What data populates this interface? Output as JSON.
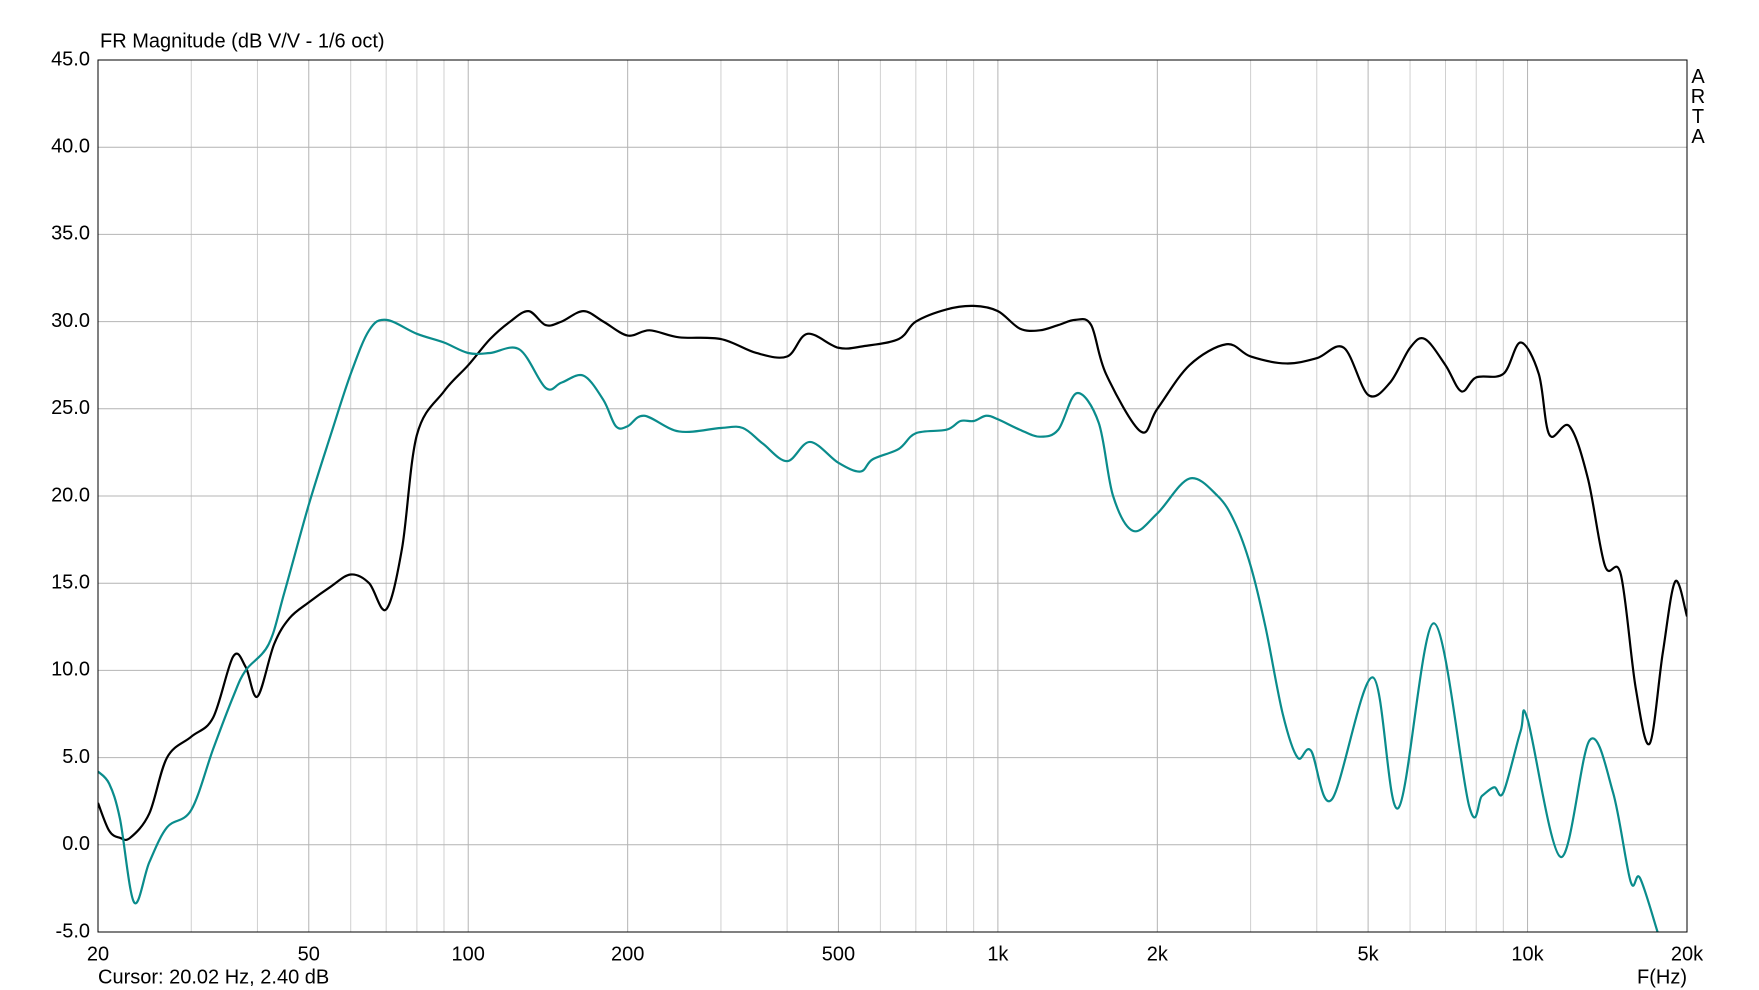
{
  "chart_data": {
    "type": "line",
    "title": "FR Magnitude (dB V/V - 1/6 oct)",
    "xlabel": "F(Hz)",
    "watermark": "ARTA",
    "status": "Cursor: 20.02 Hz, 2.40 dB",
    "xscale": "log",
    "grid": true,
    "xlim": [
      20,
      20000
    ],
    "ylim": [
      -5,
      45
    ],
    "xticks": [
      20,
      50,
      100,
      200,
      500,
      {
        "value": 1000,
        "label": "1k"
      },
      {
        "value": 2000,
        "label": "2k"
      },
      {
        "value": 5000,
        "label": "5k"
      },
      {
        "value": 10000,
        "label": "10k"
      },
      {
        "value": 20000,
        "label": "20k"
      }
    ],
    "xminorticks": [
      30,
      40,
      60,
      70,
      80,
      90,
      300,
      400,
      600,
      700,
      800,
      900,
      3000,
      4000,
      6000,
      7000,
      8000,
      9000
    ],
    "yticks": [
      {
        "value": -5,
        "label": "-5.0"
      },
      {
        "value": 0,
        "label": "0.0"
      },
      {
        "value": 5,
        "label": "5.0"
      },
      {
        "value": 10,
        "label": "10.0"
      },
      {
        "value": 15,
        "label": "15.0"
      },
      {
        "value": 20,
        "label": "20.0"
      },
      {
        "value": 25,
        "label": "25.0"
      },
      {
        "value": 30,
        "label": "30.0"
      },
      {
        "value": 35,
        "label": "35.0"
      },
      {
        "value": 40,
        "label": "40.0"
      },
      {
        "value": 45,
        "label": "45.0"
      }
    ],
    "series": [
      {
        "color": "#000000",
        "x": [
          20,
          21,
          22,
          23,
          25,
          27,
          30,
          33,
          36,
          38,
          40,
          43,
          46,
          50,
          55,
          60,
          65,
          70,
          75,
          80,
          90,
          100,
          110,
          120,
          130,
          140,
          150,
          165,
          180,
          200,
          220,
          250,
          300,
          350,
          400,
          437,
          500,
          560,
          650,
          700,
          800,
          900,
          1000,
          1100,
          1200,
          1300,
          1400,
          1500,
          1600,
          1860,
          2000,
          2300,
          2700,
          3000,
          3500,
          4000,
          4500,
          5000,
          5500,
          6000,
          6400,
          7000,
          7500,
          8000,
          9000,
          9700,
          10500,
          11000,
          12000,
          13000,
          14000,
          15000,
          16000,
          17000,
          18000,
          19000,
          20000
        ],
        "values": [
          2.4,
          0.8,
          0.4,
          0.4,
          1.8,
          5.0,
          6.2,
          7.3,
          10.8,
          10.2,
          8.5,
          11.5,
          13.0,
          13.9,
          14.8,
          15.5,
          15.0,
          13.5,
          17.0,
          23.5,
          26.0,
          27.5,
          29.0,
          30.0,
          30.6,
          29.8,
          30.0,
          30.6,
          30.0,
          29.2,
          29.5,
          29.1,
          29.0,
          28.2,
          28.0,
          29.3,
          28.5,
          28.6,
          29.0,
          30.0,
          30.7,
          30.9,
          30.6,
          29.6,
          29.5,
          29.8,
          30.1,
          29.8,
          27.0,
          23.7,
          25.0,
          27.5,
          28.7,
          28.0,
          27.6,
          27.9,
          28.5,
          25.8,
          26.5,
          28.5,
          29.0,
          27.5,
          26.0,
          26.8,
          27.0,
          28.8,
          27.0,
          23.5,
          24.0,
          21.0,
          16.0,
          15.5,
          9.0,
          5.8,
          11.0,
          15.1,
          13.1
        ]
      },
      {
        "color": "#0a8c8c",
        "x": [
          20,
          21,
          22,
          23.4,
          25,
          27,
          30,
          33,
          36,
          38,
          42,
          45,
          50,
          55,
          60,
          65,
          70,
          80,
          90,
          100,
          110,
          125,
          140,
          150,
          165,
          180,
          190,
          200,
          215,
          250,
          300,
          330,
          360,
          400,
          442,
          500,
          550,
          580,
          650,
          700,
          800,
          850,
          900,
          950,
          1000,
          1100,
          1200,
          1300,
          1410,
          1550,
          1650,
          1800,
          2000,
          2300,
          2600,
          2800,
          3000,
          3200,
          3450,
          3680,
          3900,
          4270,
          5100,
          5700,
          6650,
          7760,
          8200,
          8650,
          9000,
          9700,
          10000,
          11550,
          13100,
          14500,
          15650,
          16300,
          17600
        ],
        "values": [
          4.2,
          3.5,
          1.5,
          -3.3,
          -1.0,
          1.0,
          2.0,
          5.5,
          8.5,
          10.0,
          11.5,
          14.5,
          19.5,
          23.5,
          27.0,
          29.5,
          30.1,
          29.3,
          28.8,
          28.2,
          28.2,
          28.4,
          26.2,
          26.5,
          26.9,
          25.5,
          24.0,
          24.0,
          24.6,
          23.7,
          23.9,
          23.9,
          23.0,
          22.0,
          23.1,
          21.9,
          21.4,
          22.1,
          22.7,
          23.6,
          23.8,
          24.3,
          24.3,
          24.6,
          24.4,
          23.8,
          23.4,
          23.8,
          25.9,
          24.2,
          20.0,
          18.0,
          19.0,
          21.0,
          20.0,
          18.5,
          16.0,
          12.5,
          7.5,
          5.0,
          5.4,
          2.6,
          9.6,
          2.1,
          12.7,
          2.2,
          2.8,
          3.3,
          3.0,
          6.5,
          7.2,
          -0.7,
          6.0,
          3.0,
          -2.1,
          -1.9,
          -5.0
        ]
      }
    ]
  }
}
